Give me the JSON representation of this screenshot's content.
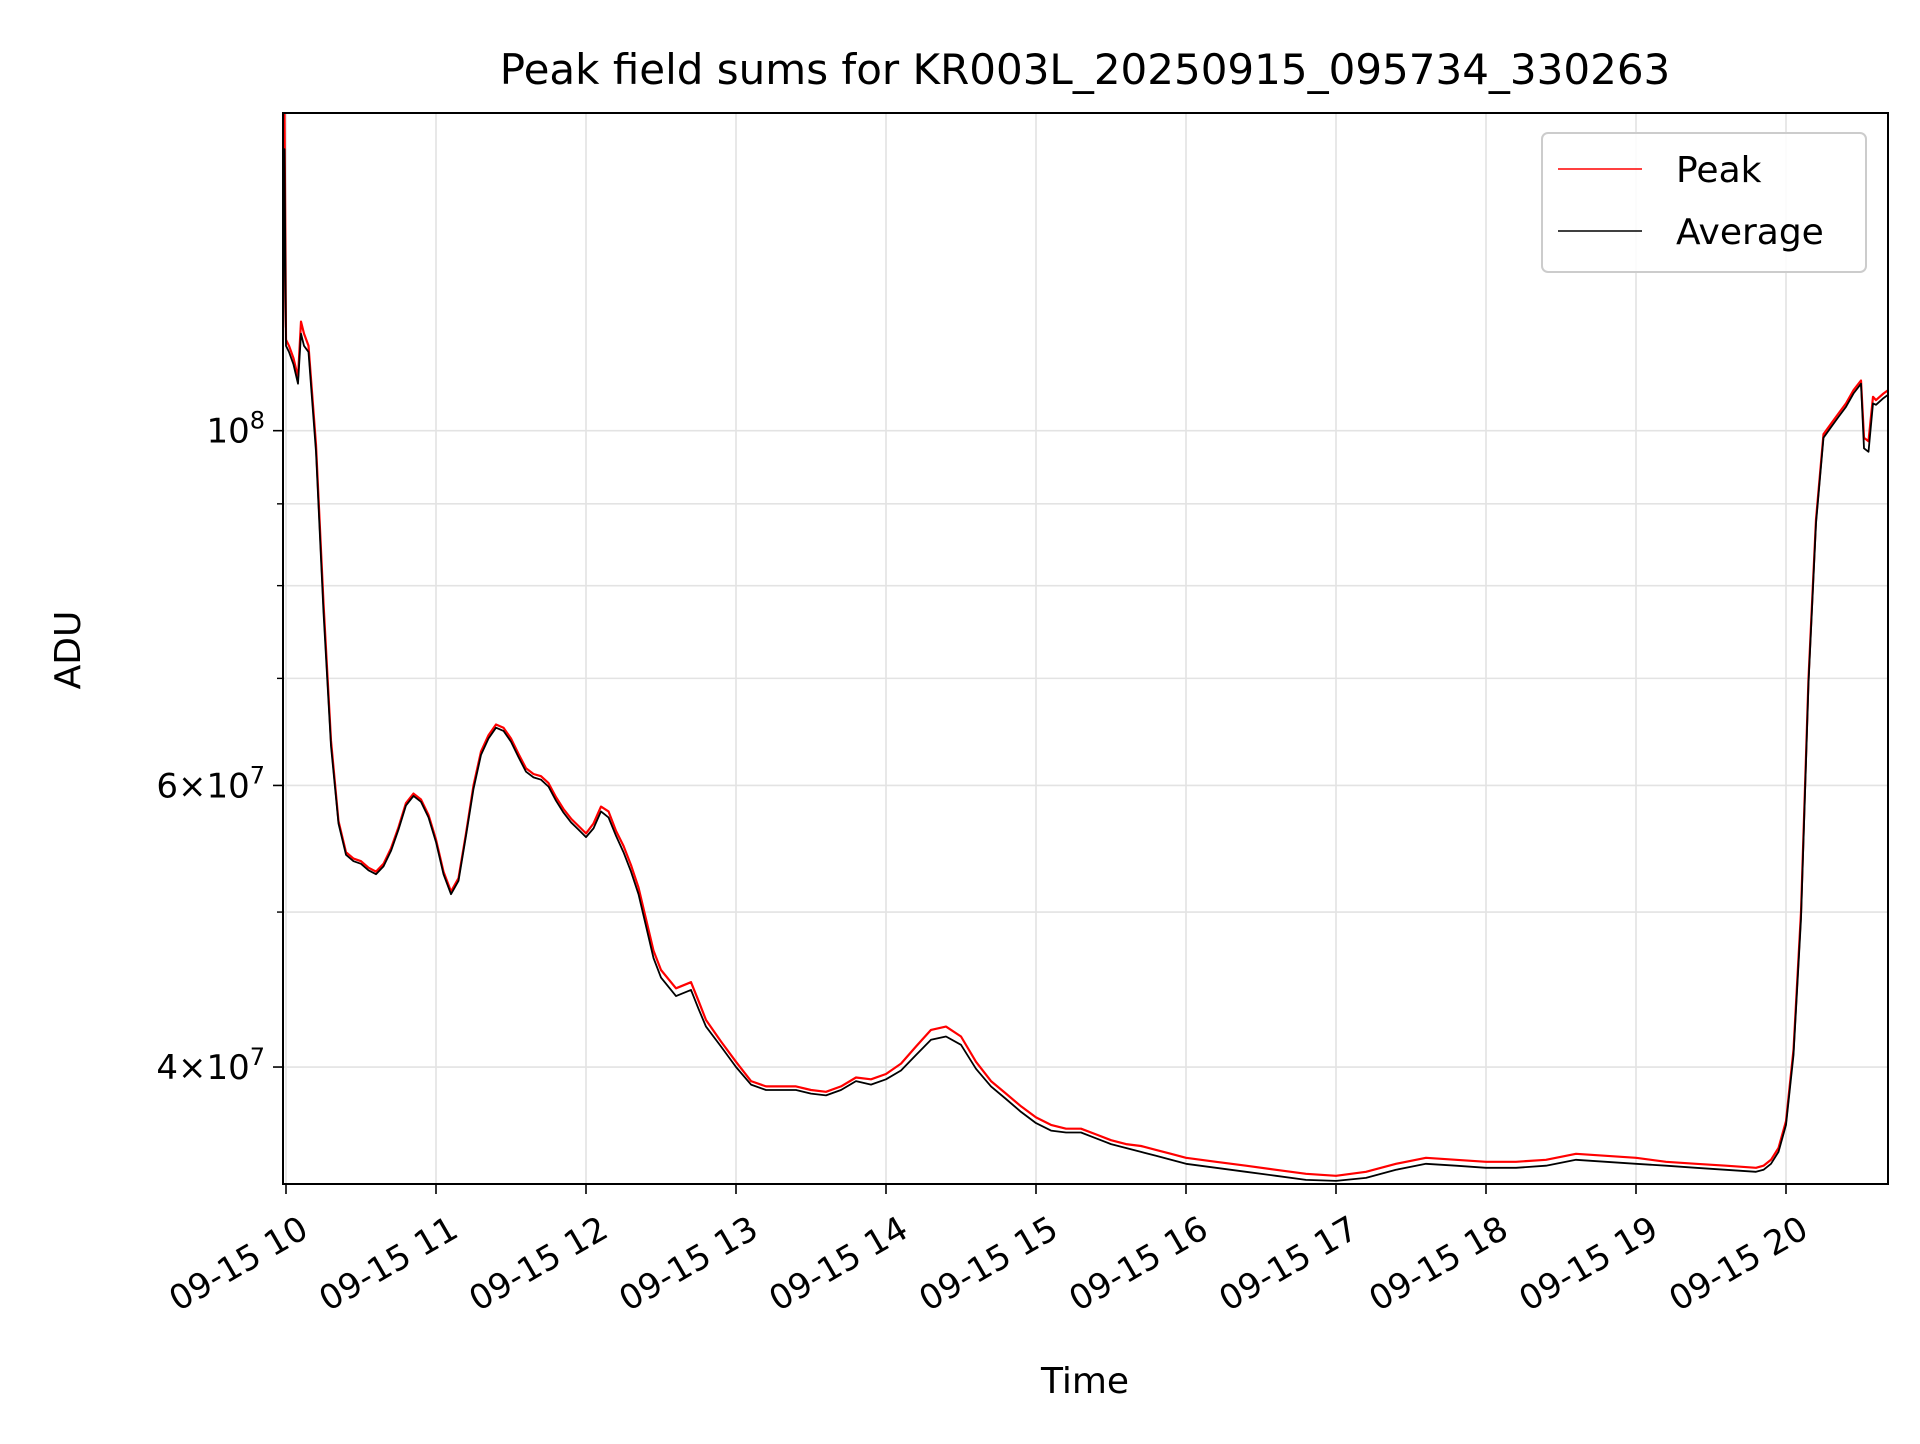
{
  "chart_data": {
    "type": "line",
    "title": "Peak field sums for KR003L_20250915_095734_330263",
    "xlabel": "Time",
    "ylabel": "ADU",
    "x_unit": "hours of day (2025-09-15)",
    "xlim": [
      9.98,
      20.68
    ],
    "ylim": [
      33800000,
      158000000
    ],
    "yscale": "log",
    "grid": true,
    "legend_position": "top-right",
    "x_ticks": [
      {
        "value": 10,
        "label": "09-15 10"
      },
      {
        "value": 11,
        "label": "09-15 11"
      },
      {
        "value": 12,
        "label": "09-15 12"
      },
      {
        "value": 13,
        "label": "09-15 13"
      },
      {
        "value": 14,
        "label": "09-15 14"
      },
      {
        "value": 15,
        "label": "09-15 15"
      },
      {
        "value": 16,
        "label": "09-15 16"
      },
      {
        "value": 17,
        "label": "09-15 17"
      },
      {
        "value": 18,
        "label": "09-15 18"
      },
      {
        "value": 19,
        "label": "09-15 19"
      },
      {
        "value": 20,
        "label": "09-15 20"
      }
    ],
    "y_major_ticks": [
      {
        "value": 40000000,
        "mantissa": "4",
        "exponent": "7"
      },
      {
        "value": 60000000,
        "mantissa": "6",
        "exponent": "7"
      },
      {
        "value": 100000000,
        "mantissa": "",
        "exponent": "8"
      }
    ],
    "y_minor_ticks": [
      50000000,
      70000000,
      80000000,
      90000000
    ],
    "series": [
      {
        "name": "Peak",
        "color": "#ff0000",
        "x": [
          9.98,
          9.99,
          10.0,
          10.02,
          10.05,
          10.08,
          10.1,
          10.12,
          10.15,
          10.2,
          10.25,
          10.3,
          10.35,
          10.4,
          10.45,
          10.5,
          10.55,
          10.6,
          10.65,
          10.7,
          10.75,
          10.8,
          10.85,
          10.9,
          10.95,
          11.0,
          11.05,
          11.1,
          11.15,
          11.2,
          11.25,
          11.3,
          11.35,
          11.4,
          11.45,
          11.5,
          11.55,
          11.6,
          11.65,
          11.7,
          11.75,
          11.8,
          11.85,
          11.9,
          11.95,
          12.0,
          12.05,
          12.1,
          12.15,
          12.2,
          12.25,
          12.3,
          12.35,
          12.4,
          12.45,
          12.5,
          12.6,
          12.7,
          12.75,
          12.8,
          12.9,
          13.0,
          13.1,
          13.2,
          13.3,
          13.4,
          13.5,
          13.6,
          13.7,
          13.8,
          13.9,
          14.0,
          14.1,
          14.2,
          14.3,
          14.4,
          14.5,
          14.6,
          14.7,
          14.8,
          14.9,
          15.0,
          15.1,
          15.2,
          15.3,
          15.4,
          15.5,
          15.6,
          15.7,
          15.8,
          15.9,
          16.0,
          16.2,
          16.4,
          16.6,
          16.8,
          17.0,
          17.2,
          17.4,
          17.6,
          17.8,
          18.0,
          18.2,
          18.4,
          18.6,
          18.8,
          19.0,
          19.2,
          19.4,
          19.6,
          19.8,
          19.85,
          19.9,
          19.95,
          20.0,
          20.05,
          20.1,
          20.15,
          20.2,
          20.25,
          20.3,
          20.35,
          20.4,
          20.45,
          20.5,
          20.52,
          20.55,
          20.58,
          20.6,
          20.65,
          20.68
        ],
        "y": [
          116000000,
          158000000,
          114000000,
          113000000,
          111000000,
          108000000,
          117000000,
          115000000,
          113000000,
          98000000,
          78000000,
          64000000,
          57000000,
          54500000,
          54000000,
          53800000,
          53300000,
          53000000,
          53600000,
          54800000,
          56500000,
          58500000,
          59300000,
          58800000,
          57500000,
          55500000,
          53000000,
          51500000,
          52500000,
          56000000,
          60000000,
          63000000,
          64500000,
          65500000,
          65200000,
          64200000,
          62800000,
          61500000,
          61000000,
          60800000,
          60200000,
          59000000,
          58000000,
          57200000,
          56600000,
          56000000,
          56800000,
          58200000,
          57800000,
          56200000,
          55000000,
          53500000,
          51800000,
          49500000,
          47300000,
          46000000,
          44800000,
          45200000,
          44000000,
          42800000,
          41500000,
          40300000,
          39200000,
          38900000,
          38900000,
          38900000,
          38700000,
          38600000,
          38900000,
          39400000,
          39300000,
          39600000,
          40200000,
          41200000,
          42200000,
          42400000,
          41800000,
          40300000,
          39200000,
          38500000,
          37800000,
          37200000,
          36800000,
          36600000,
          36600000,
          36300000,
          36000000,
          35800000,
          35700000,
          35500000,
          35300000,
          35100000,
          34900000,
          34700000,
          34500000,
          34300000,
          34200000,
          34400000,
          34800000,
          35100000,
          35000000,
          34900000,
          34900000,
          35000000,
          35300000,
          35200000,
          35100000,
          34900000,
          34800000,
          34700000,
          34600000,
          34700000,
          35000000,
          35600000,
          37000000,
          41000000,
          50000000,
          70000000,
          88000000,
          99500000,
          101000000,
          102500000,
          104000000,
          106000000,
          107500000,
          99000000,
          98500000,
          105000000,
          104500000,
          105500000,
          106000000
        ]
      },
      {
        "name": "Average",
        "color": "#000000",
        "x": [
          9.98,
          9.99,
          10.0,
          10.02,
          10.05,
          10.08,
          10.1,
          10.12,
          10.15,
          10.2,
          10.25,
          10.3,
          10.35,
          10.4,
          10.45,
          10.5,
          10.55,
          10.6,
          10.65,
          10.7,
          10.75,
          10.8,
          10.85,
          10.9,
          10.95,
          11.0,
          11.05,
          11.1,
          11.15,
          11.2,
          11.25,
          11.3,
          11.35,
          11.4,
          11.45,
          11.5,
          11.55,
          11.6,
          11.65,
          11.7,
          11.75,
          11.8,
          11.85,
          11.9,
          11.95,
          12.0,
          12.05,
          12.1,
          12.15,
          12.2,
          12.25,
          12.3,
          12.35,
          12.4,
          12.45,
          12.5,
          12.6,
          12.7,
          12.75,
          12.8,
          12.9,
          13.0,
          13.1,
          13.2,
          13.3,
          13.4,
          13.5,
          13.6,
          13.7,
          13.8,
          13.9,
          14.0,
          14.1,
          14.2,
          14.3,
          14.4,
          14.5,
          14.6,
          14.7,
          14.8,
          14.9,
          15.0,
          15.1,
          15.2,
          15.3,
          15.4,
          15.5,
          15.6,
          15.7,
          15.8,
          15.9,
          16.0,
          16.2,
          16.4,
          16.6,
          16.8,
          17.0,
          17.2,
          17.4,
          17.6,
          17.8,
          18.0,
          18.2,
          18.4,
          18.6,
          18.8,
          19.0,
          19.2,
          19.4,
          19.6,
          19.8,
          19.85,
          19.9,
          19.95,
          20.0,
          20.05,
          20.1,
          20.15,
          20.2,
          20.25,
          20.3,
          20.35,
          20.4,
          20.45,
          20.5,
          20.52,
          20.55,
          20.58,
          20.6,
          20.65,
          20.68
        ],
        "y": [
          114000000,
          150000000,
          113000000,
          112000000,
          110000000,
          107000000,
          115000000,
          113000000,
          112000000,
          97000000,
          77000000,
          63500000,
          56800000,
          54300000,
          53800000,
          53600000,
          53100000,
          52800000,
          53400000,
          54600000,
          56300000,
          58300000,
          59100000,
          58600000,
          57300000,
          55300000,
          52800000,
          51300000,
          52300000,
          55800000,
          59700000,
          62700000,
          64200000,
          65200000,
          64900000,
          63900000,
          62500000,
          61200000,
          60700000,
          60500000,
          59900000,
          58700000,
          57700000,
          56900000,
          56300000,
          55700000,
          56400000,
          57800000,
          57300000,
          55800000,
          54500000,
          53000000,
          51300000,
          49000000,
          46800000,
          45500000,
          44300000,
          44700000,
          43500000,
          42400000,
          41200000,
          40000000,
          39000000,
          38700000,
          38700000,
          38700000,
          38500000,
          38400000,
          38700000,
          39200000,
          39000000,
          39300000,
          39800000,
          40700000,
          41600000,
          41800000,
          41300000,
          39900000,
          38900000,
          38200000,
          37500000,
          36900000,
          36500000,
          36400000,
          36400000,
          36100000,
          35800000,
          35600000,
          35400000,
          35200000,
          35000000,
          34800000,
          34600000,
          34400000,
          34200000,
          34000000,
          33950000,
          34100000,
          34500000,
          34800000,
          34700000,
          34600000,
          34600000,
          34700000,
          35000000,
          34900000,
          34800000,
          34700000,
          34600000,
          34500000,
          34400000,
          34500000,
          34800000,
          35400000,
          36800000,
          40700000,
          49500000,
          69500000,
          87500000,
          99000000,
          100500000,
          102000000,
          103500000,
          105500000,
          107000000,
          97500000,
          97000000,
          104000000,
          103800000,
          104800000,
          105300000
        ]
      }
    ]
  }
}
